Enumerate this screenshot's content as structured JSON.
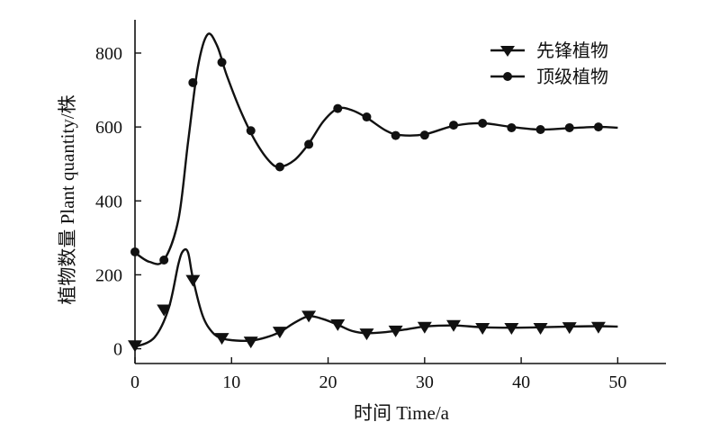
{
  "chart_data": {
    "type": "line",
    "xlabel": "时间 Time/a",
    "ylabel": "植物数量  Plant quantity/株",
    "xlim": [
      0,
      55
    ],
    "ylim": [
      -40,
      890
    ],
    "xticks": [
      0,
      10,
      20,
      30,
      40,
      50
    ],
    "yticks": [
      0,
      200,
      400,
      600,
      800
    ],
    "grid": false,
    "legend_position": "top-right",
    "series": [
      {
        "name": "先锋植物",
        "marker": "triangle-down",
        "color": "#111111",
        "curve": [
          [
            0,
            5
          ],
          [
            2,
            30
          ],
          [
            3.5,
            110
          ],
          [
            4.5,
            230
          ],
          [
            5,
            265
          ],
          [
            5.5,
            260
          ],
          [
            6,
            190
          ],
          [
            7,
            90
          ],
          [
            8,
            45
          ],
          [
            9,
            28
          ],
          [
            10.5,
            22
          ],
          [
            12,
            22
          ],
          [
            13.5,
            30
          ],
          [
            15,
            45
          ],
          [
            16.5,
            70
          ],
          [
            18,
            88
          ],
          [
            19.5,
            80
          ],
          [
            21,
            65
          ],
          [
            22.5,
            48
          ],
          [
            24,
            42
          ],
          [
            26,
            45
          ],
          [
            28,
            52
          ],
          [
            30,
            60
          ],
          [
            33,
            63
          ],
          [
            36,
            58
          ],
          [
            39,
            57
          ],
          [
            42,
            58
          ],
          [
            45,
            60
          ],
          [
            48,
            61
          ],
          [
            50,
            60
          ]
        ],
        "markers": [
          [
            0,
            8
          ],
          [
            3,
            105
          ],
          [
            6,
            185
          ],
          [
            9,
            28
          ],
          [
            12,
            18
          ],
          [
            15,
            45
          ],
          [
            18,
            88
          ],
          [
            21,
            65
          ],
          [
            24,
            40
          ],
          [
            27,
            48
          ],
          [
            30,
            58
          ],
          [
            33,
            63
          ],
          [
            36,
            55
          ],
          [
            39,
            55
          ],
          [
            42,
            55
          ],
          [
            45,
            57
          ],
          [
            48,
            58
          ]
        ]
      },
      {
        "name": "顶级植物",
        "marker": "circle",
        "color": "#111111",
        "curve": [
          [
            0,
            260
          ],
          [
            1.5,
            235
          ],
          [
            3,
            240
          ],
          [
            4.5,
            350
          ],
          [
            5.5,
            560
          ],
          [
            6.5,
            760
          ],
          [
            7.5,
            850
          ],
          [
            8.5,
            820
          ],
          [
            9.5,
            740
          ],
          [
            11,
            640
          ],
          [
            12.5,
            560
          ],
          [
            14,
            505
          ],
          [
            15,
            492
          ],
          [
            16.5,
            510
          ],
          [
            18,
            555
          ],
          [
            19.5,
            615
          ],
          [
            21,
            650
          ],
          [
            22.5,
            645
          ],
          [
            24,
            625
          ],
          [
            26,
            590
          ],
          [
            27.5,
            578
          ],
          [
            30,
            580
          ],
          [
            33,
            603
          ],
          [
            36,
            610
          ],
          [
            39,
            600
          ],
          [
            42,
            593
          ],
          [
            45,
            597
          ],
          [
            48,
            600
          ],
          [
            50,
            598
          ]
        ],
        "markers": [
          [
            0,
            262
          ],
          [
            3,
            240
          ],
          [
            6,
            720
          ],
          [
            9,
            775
          ],
          [
            12,
            590
          ],
          [
            15,
            492
          ],
          [
            18,
            553
          ],
          [
            21,
            650
          ],
          [
            24,
            627
          ],
          [
            27,
            577
          ],
          [
            30,
            578
          ],
          [
            33,
            605
          ],
          [
            36,
            610
          ],
          [
            39,
            598
          ],
          [
            42,
            593
          ],
          [
            45,
            598
          ],
          [
            48,
            600
          ]
        ]
      }
    ]
  }
}
